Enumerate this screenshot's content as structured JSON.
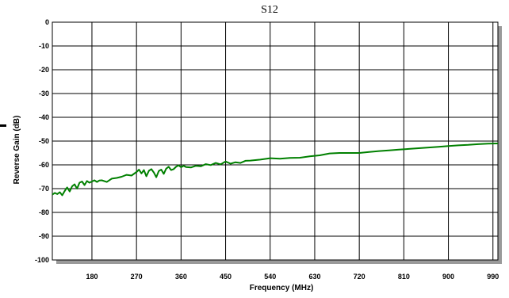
{
  "chart_data": {
    "type": "line",
    "title": "S12",
    "xlabel": "Frequency (MHz)",
    "ylabel": "Reverse Gain (dB)",
    "xlim": [
      100,
      1000
    ],
    "ylim": [
      -100,
      0
    ],
    "x_ticks": [
      180,
      270,
      360,
      450,
      540,
      630,
      720,
      810,
      900,
      990
    ],
    "y_ticks": [
      0,
      -10,
      -20,
      -30,
      -40,
      -50,
      -60,
      -70,
      -80,
      -90,
      -100
    ],
    "grid": true,
    "series": [
      {
        "color": "#008000",
        "x": [
          100,
          105,
          110,
          115,
          120,
          125,
          130,
          135,
          140,
          145,
          150,
          155,
          160,
          165,
          170,
          175,
          180,
          185,
          190,
          195,
          200,
          210,
          220,
          230,
          240,
          250,
          260,
          270,
          275,
          280,
          285,
          290,
          295,
          300,
          305,
          310,
          315,
          320,
          325,
          330,
          335,
          340,
          345,
          350,
          355,
          360,
          365,
          370,
          380,
          390,
          400,
          410,
          420,
          430,
          440,
          450,
          460,
          470,
          480,
          490,
          500,
          520,
          540,
          560,
          580,
          600,
          620,
          640,
          660,
          680,
          700,
          720,
          740,
          760,
          780,
          800,
          820,
          840,
          860,
          880,
          900,
          920,
          940,
          960,
          980,
          1000
        ],
        "values": [
          -72.5,
          -71.8,
          -72.3,
          -71.5,
          -72.8,
          -71.0,
          -69.5,
          -71.2,
          -69.0,
          -68.2,
          -70.0,
          -67.5,
          -67.0,
          -68.5,
          -66.8,
          -67.5,
          -67.0,
          -66.5,
          -67.2,
          -66.6,
          -66.5,
          -67.2,
          -65.8,
          -65.5,
          -65.0,
          -64.2,
          -64.5,
          -63.0,
          -62.0,
          -63.6,
          -62.2,
          -64.8,
          -62.5,
          -61.8,
          -63.2,
          -65.2,
          -62.6,
          -62.0,
          -63.8,
          -61.6,
          -60.8,
          -62.2,
          -61.8,
          -60.8,
          -60.2,
          -61.0,
          -60.4,
          -60.9,
          -61.1,
          -60.4,
          -60.6,
          -59.7,
          -60.1,
          -59.2,
          -59.8,
          -58.6,
          -59.5,
          -58.9,
          -59.2,
          -58.3,
          -58.2,
          -57.8,
          -57.2,
          -57.4,
          -57.1,
          -57.0,
          -56.4,
          -56.0,
          -55.2,
          -55.0,
          -55.0,
          -55.0,
          -54.6,
          -54.2,
          -53.9,
          -53.6,
          -53.3,
          -53.0,
          -52.7,
          -52.4,
          -52.1,
          -51.8,
          -51.6,
          -51.3,
          -51.1,
          -51.0
        ]
      }
    ]
  }
}
